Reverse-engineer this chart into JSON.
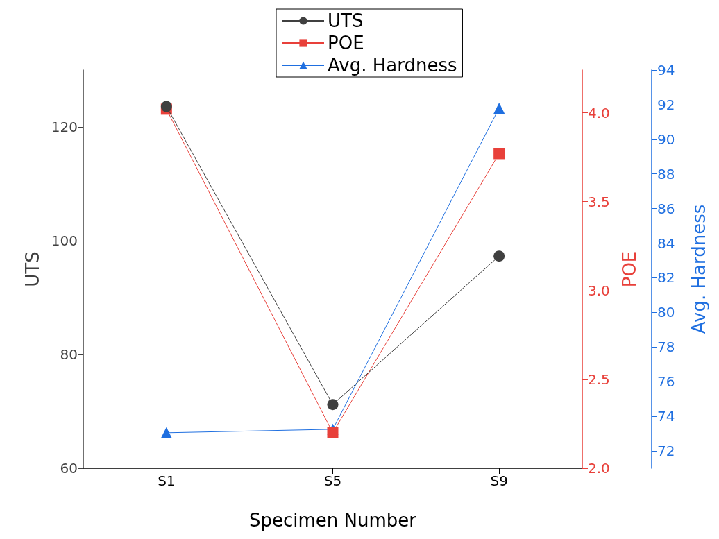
{
  "chart_data": {
    "type": "line",
    "xlabel": "Specimen Number",
    "ylabel": "UTS",
    "y2label": "POE",
    "y3label": "Avg. Hardness",
    "categories": [
      "S1",
      "S5",
      "S9"
    ],
    "series": [
      {
        "name": "UTS",
        "color": "#404040",
        "marker": "circle",
        "values": [
          123.6,
          71.2,
          97.3
        ]
      },
      {
        "name": "POE",
        "color": "#e8403a",
        "marker": "square",
        "axis": "y2",
        "values": [
          4.02,
          2.2,
          3.77
        ]
      },
      {
        "name": "Avg. Hardness",
        "color": "#1f6fe0",
        "marker": "triangle",
        "axis": "y3",
        "values": [
          73.05,
          73.25,
          91.8
        ]
      }
    ],
    "ylim": [
      60,
      130
    ],
    "yticks": [
      60,
      80,
      100,
      120
    ],
    "y2lim": [
      2.0,
      4.24
    ],
    "y2ticks": [
      {
        "value": 2,
        "label": "2.0"
      },
      {
        "value": 2.5,
        "label": "2.5"
      },
      {
        "value": 3,
        "label": "3.0"
      },
      {
        "value": 3.5,
        "label": "3.5"
      },
      {
        "value": 4,
        "label": "4.0"
      }
    ],
    "y3lim": [
      71,
      94
    ],
    "y3ticks": [
      72,
      74,
      76,
      78,
      80,
      82,
      84,
      86,
      88,
      90,
      92,
      94
    ],
    "legend": "top",
    "grid": false,
    "line_style": "solid"
  }
}
